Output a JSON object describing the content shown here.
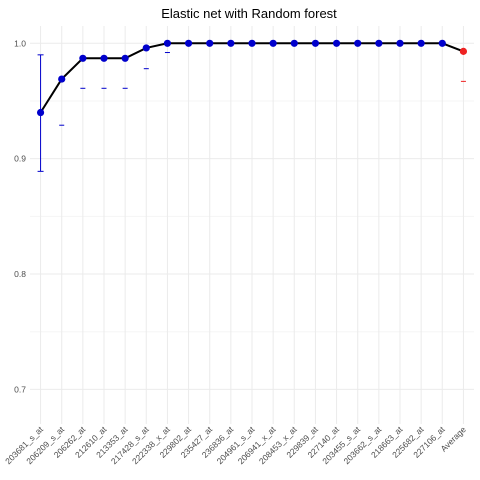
{
  "chart_data": {
    "type": "line",
    "title": "Elastic net  with Random forest",
    "xlabel": "",
    "ylabel": "",
    "ylim": [
      0.67,
      1.015
    ],
    "yticks": [
      0.7,
      0.8,
      0.9,
      1.0
    ],
    "ytick_labels": [
      "0.7",
      "0.8",
      "0.9",
      "1.0"
    ],
    "grid": true,
    "categories": [
      "203681_s_at",
      "206209_s_at",
      "206262_at",
      "212610_at",
      "213353_at",
      "217428_s_at",
      "222338_x_at",
      "229802_at",
      "235427_at",
      "236836_at",
      "204961_s_at",
      "206941_x_at",
      "208453_x_at",
      "229839_at",
      "227140_at",
      "203455_s_at",
      "203662_s_at",
      "218663_at",
      "225682_at",
      "227106_at",
      "Average"
    ],
    "series": [
      {
        "values": [
          0.94,
          0.969,
          0.987,
          0.987,
          0.987,
          0.996,
          1.0,
          1.0,
          1.0,
          1.0,
          1.0,
          1.0,
          1.0,
          1.0,
          1.0,
          1.0,
          1.0,
          1.0,
          1.0,
          1.0,
          0.993
        ],
        "upper": [
          0.99,
          null,
          null,
          null,
          null,
          null,
          null,
          null,
          null,
          null,
          null,
          null,
          null,
          null,
          null,
          null,
          null,
          null,
          null,
          null,
          null
        ],
        "lower": [
          0.889,
          0.929,
          0.961,
          0.961,
          0.961,
          0.978,
          0.992,
          null,
          null,
          null,
          null,
          null,
          null,
          null,
          null,
          null,
          null,
          null,
          null,
          null,
          0.967
        ]
      }
    ],
    "colors": {
      "point": "#0000cc",
      "average": "#ee2222",
      "line": "#000000",
      "error": "#0000cc",
      "average_error": "#ee2222"
    }
  }
}
